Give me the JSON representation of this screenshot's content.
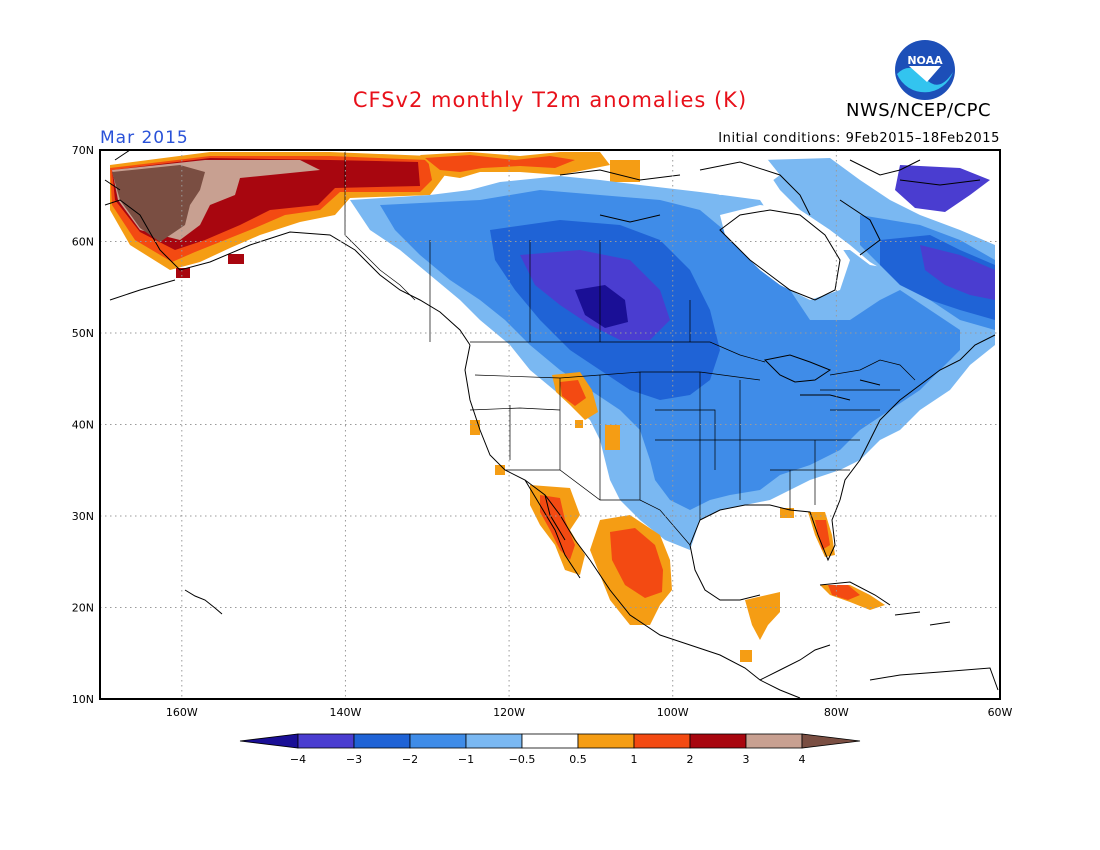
{
  "title": "CFSv2 monthly T2m anomalies (K)",
  "organization": "NWS/NCEP/CPC",
  "logo_text": "NOAA",
  "valid_month": "Mar 2015",
  "initial_conditions": "Initial conditions: 9Feb2015–18Feb2015",
  "map": {
    "lon_ticks": [
      {
        "lon": -160,
        "label": "160W"
      },
      {
        "lon": -140,
        "label": "140W"
      },
      {
        "lon": -120,
        "label": "120W"
      },
      {
        "lon": -100,
        "label": "100W"
      },
      {
        "lon": -80,
        "label": "80W"
      },
      {
        "lon": -60,
        "label": "60W"
      }
    ],
    "lat_ticks": [
      {
        "lat": 70,
        "label": "70N"
      },
      {
        "lat": 60,
        "label": "60N"
      },
      {
        "lat": 50,
        "label": "50N"
      },
      {
        "lat": 40,
        "label": "40N"
      },
      {
        "lat": 30,
        "label": "30N"
      },
      {
        "lat": 20,
        "label": "20N"
      },
      {
        "lat": 10,
        "label": "10N"
      }
    ],
    "extent": {
      "lon_min": -170,
      "lon_max": -60,
      "lat_min": 10,
      "lat_max": 70
    }
  },
  "legend": {
    "bins": [
      {
        "color": "#1a0f96"
      },
      {
        "color": "#4a3dd0"
      },
      {
        "color": "#1f63d6"
      },
      {
        "color": "#3f8ce8"
      },
      {
        "color": "#7ab8f2"
      },
      {
        "color": "#ffffff"
      },
      {
        "color": "#f59d14"
      },
      {
        "color": "#f34a12"
      },
      {
        "color": "#a8060f"
      },
      {
        "color": "#c8a091"
      },
      {
        "color": "#7a4e42"
      }
    ],
    "labels": [
      "−4",
      "−3",
      "−2",
      "−1",
      "−0.5",
      "0.5",
      "1",
      "2",
      "3",
      "4"
    ]
  }
}
